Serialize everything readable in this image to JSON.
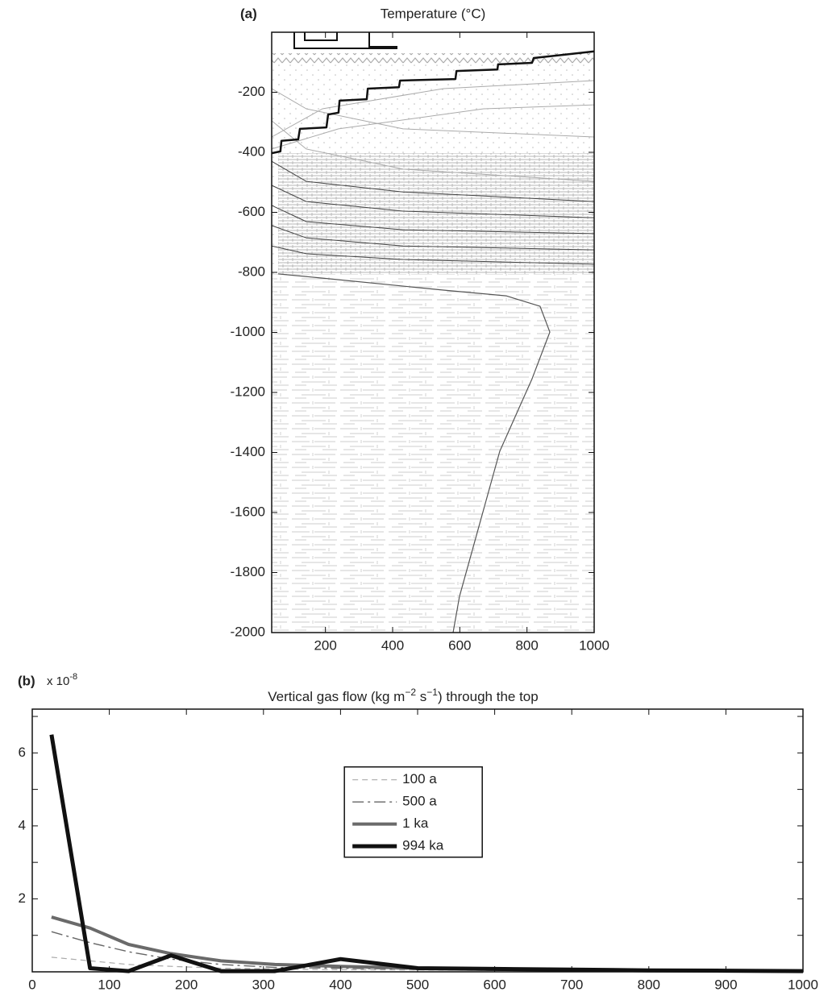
{
  "chart_data": [
    {
      "type": "line",
      "panel_label": "(a)",
      "title": "Temperature (°C)",
      "xlim": [
        40,
        1000
      ],
      "xticks": [
        200,
        400,
        600,
        800,
        1000
      ],
      "ylim": [
        -2000,
        0
      ],
      "yticks": [
        -200,
        -400,
        -600,
        -800,
        -1000,
        -1200,
        -1400,
        -1600,
        -1800,
        -2000
      ],
      "series": [
        {
          "color": "#aaaaaa",
          "width": 1,
          "style": "solid",
          "x": [
            40,
            143,
            431,
            1000
          ],
          "y": [
            -295,
            -389,
            -456,
            -497
          ]
        },
        {
          "color": "#aaaaaa",
          "width": 1,
          "style": "solid",
          "x": [
            40,
            143,
            431,
            1000
          ],
          "y": [
            -188,
            -255,
            -322,
            -349
          ]
        },
        {
          "color": "#aaaaaa",
          "width": 1,
          "style": "solid",
          "x": [
            40,
            191,
            551,
            1000
          ],
          "y": [
            -349,
            -255,
            -188,
            -161
          ]
        },
        {
          "color": "#aaaaaa",
          "width": 1,
          "style": "solid",
          "x": [
            40,
            239,
            671,
            1000
          ],
          "y": [
            -389,
            -322,
            -255,
            -242
          ]
        },
        {
          "color": "#444444",
          "width": 1,
          "style": "solid",
          "x": [
            40,
            143,
            431,
            1000
          ],
          "y": [
            -430,
            -497,
            -532,
            -564
          ]
        },
        {
          "color": "#444444",
          "width": 1,
          "style": "solid",
          "x": [
            40,
            143,
            431,
            1000
          ],
          "y": [
            -510,
            -564,
            -596,
            -618
          ]
        },
        {
          "color": "#444444",
          "width": 1,
          "style": "solid",
          "x": [
            40,
            143,
            431,
            1000
          ],
          "y": [
            -577,
            -631,
            -658,
            -671
          ]
        },
        {
          "color": "#444444",
          "width": 1,
          "style": "solid",
          "x": [
            40,
            143,
            431,
            1000
          ],
          "y": [
            -644,
            -685,
            -712,
            -725
          ]
        },
        {
          "color": "#444444",
          "width": 1,
          "style": "solid",
          "x": [
            40,
            143,
            431,
            1000
          ],
          "y": [
            -712,
            -738,
            -757,
            -773
          ]
        },
        {
          "color": "#555555",
          "width": 1.2,
          "style": "solid",
          "x": [
            59,
            191,
            551,
            738,
            839,
            868,
            815,
            719,
            659,
            599,
            580
          ],
          "y": [
            -805,
            -819,
            -859,
            -878,
            -913,
            -999,
            -1155,
            -1396,
            -1638,
            -1880,
            -2000
          ]
        },
        {
          "color": "#111111",
          "width": 2.5,
          "style": "solid",
          "x": [
            40,
            66,
            69,
            119,
            124,
            203,
            208,
            239,
            242,
            323,
            326,
            419,
            422,
            587,
            590,
            712,
            714,
            815,
            820,
            911,
            1000
          ],
          "y": [
            -403,
            -397,
            -362,
            -357,
            -322,
            -317,
            -274,
            -268,
            -228,
            -223,
            -188,
            -183,
            -161,
            -156,
            -129,
            -124,
            -107,
            -102,
            -86,
            -75,
            -64
          ]
        }
      ]
    },
    {
      "type": "line",
      "panel_label": "(b)",
      "y_multiplier": "x 10",
      "y_multiplier_exp": "-8",
      "title_parts": [
        "Vertical gas flow (kg m",
        "−2",
        " s",
        "−1",
        ") through the top"
      ],
      "xlim": [
        0,
        1000
      ],
      "xticks": [
        0,
        100,
        200,
        300,
        400,
        500,
        600,
        700,
        800,
        900,
        1000
      ],
      "ylim": [
        0,
        7.2
      ],
      "yticks": [
        2,
        4,
        6
      ],
      "yminor": [
        1,
        3,
        5,
        7
      ],
      "legend": "center",
      "x": [
        25,
        75,
        125,
        180,
        245,
        315,
        400,
        500,
        600,
        700,
        800,
        900,
        1000
      ],
      "series": [
        {
          "name": "100 a",
          "color": "#aaaaaa",
          "width": 1.2,
          "style": "dashed",
          "values": [
            0.4,
            0.3,
            0.2,
            0.15,
            0.1,
            0.08,
            0.06,
            0.05,
            0.04,
            0.03,
            0.02,
            0.02,
            0.01
          ]
        },
        {
          "name": "500 a",
          "color": "#666666",
          "width": 1.4,
          "style": "dashdot",
          "values": [
            1.1,
            0.8,
            0.55,
            0.35,
            0.2,
            0.12,
            0.1,
            0.07,
            0.05,
            0.04,
            0.03,
            0.02,
            0.02
          ]
        },
        {
          "name": "1 ka",
          "color": "#6a6a6a",
          "width": 4,
          "style": "solid",
          "values": [
            1.5,
            1.2,
            0.75,
            0.5,
            0.3,
            0.2,
            0.15,
            0.1,
            0.07,
            0.05,
            0.04,
            0.03,
            0.02
          ]
        },
        {
          "name": "994 ka",
          "color": "#111111",
          "width": 5,
          "style": "solid",
          "values": [
            6.5,
            0.1,
            0.02,
            0.45,
            0.02,
            0.02,
            0.35,
            0.1,
            0.08,
            0.06,
            0.04,
            0.03,
            0.02
          ]
        }
      ]
    }
  ]
}
